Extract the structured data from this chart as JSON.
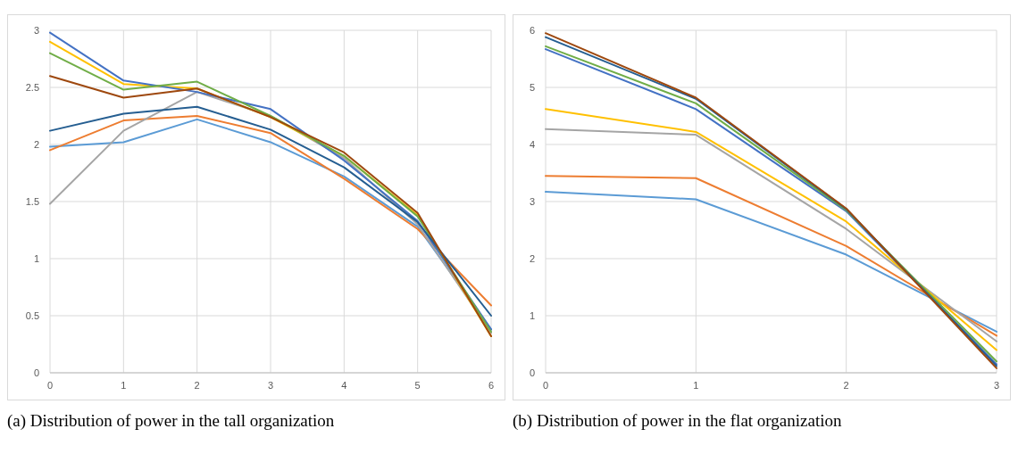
{
  "chart_data": [
    {
      "type": "line",
      "title": "(a) Distribution of power in the tall organization",
      "x": [
        0,
        1,
        2,
        3,
        4,
        5,
        6
      ],
      "xlim": [
        0,
        6
      ],
      "xticks": [
        0,
        1,
        2,
        3,
        4,
        5,
        6
      ],
      "ylim": [
        0,
        3
      ],
      "yticks": [
        0,
        0.5,
        1,
        1.5,
        2,
        2.5,
        3
      ],
      "grid": true,
      "series": [
        {
          "color": "#5b9bd5",
          "values": [
            1.98,
            2.02,
            2.22,
            2.02,
            1.72,
            1.28,
            0.38
          ]
        },
        {
          "color": "#ed7d31",
          "values": [
            1.95,
            2.21,
            2.25,
            2.1,
            1.7,
            1.26,
            0.59
          ]
        },
        {
          "color": "#a5a5a5",
          "values": [
            1.48,
            2.12,
            2.46,
            2.25,
            1.88,
            1.3,
            0.35
          ]
        },
        {
          "color": "#ffc000",
          "values": [
            2.9,
            2.53,
            2.49,
            2.24,
            1.9,
            1.38,
            0.32
          ]
        },
        {
          "color": "#4472c4",
          "values": [
            2.98,
            2.56,
            2.46,
            2.31,
            1.86,
            1.33,
            0.38
          ]
        },
        {
          "color": "#70ad47",
          "values": [
            2.8,
            2.48,
            2.55,
            2.25,
            1.9,
            1.37,
            0.36
          ]
        },
        {
          "color": "#255e91",
          "values": [
            2.12,
            2.27,
            2.33,
            2.13,
            1.8,
            1.32,
            0.5
          ]
        },
        {
          "color": "#9e480e",
          "values": [
            2.6,
            2.41,
            2.49,
            2.24,
            1.93,
            1.4,
            0.32
          ]
        }
      ]
    },
    {
      "type": "line",
      "title": "(b) Distribution of power in the flat organization",
      "x": [
        0,
        1,
        2,
        3
      ],
      "xlim": [
        0,
        3
      ],
      "xticks": [
        0,
        1,
        2,
        3
      ],
      "ylim": [
        0,
        6
      ],
      "yticks": [
        0,
        1,
        2,
        3,
        4,
        5,
        6
      ],
      "grid": true,
      "series": [
        {
          "color": "#5b9bd5",
          "values": [
            3.17,
            3.04,
            2.07,
            0.72
          ]
        },
        {
          "color": "#ed7d31",
          "values": [
            3.45,
            3.41,
            2.22,
            0.65
          ]
        },
        {
          "color": "#a5a5a5",
          "values": [
            4.27,
            4.17,
            2.52,
            0.55
          ]
        },
        {
          "color": "#ffc000",
          "values": [
            4.62,
            4.22,
            2.65,
            0.4
          ]
        },
        {
          "color": "#4472c4",
          "values": [
            5.67,
            4.62,
            2.83,
            0.15
          ]
        },
        {
          "color": "#70ad47",
          "values": [
            5.72,
            4.72,
            2.85,
            0.2
          ]
        },
        {
          "color": "#255e91",
          "values": [
            5.88,
            4.8,
            2.87,
            0.12
          ]
        },
        {
          "color": "#9e480e",
          "values": [
            5.95,
            4.82,
            2.88,
            0.08
          ]
        }
      ]
    }
  ]
}
